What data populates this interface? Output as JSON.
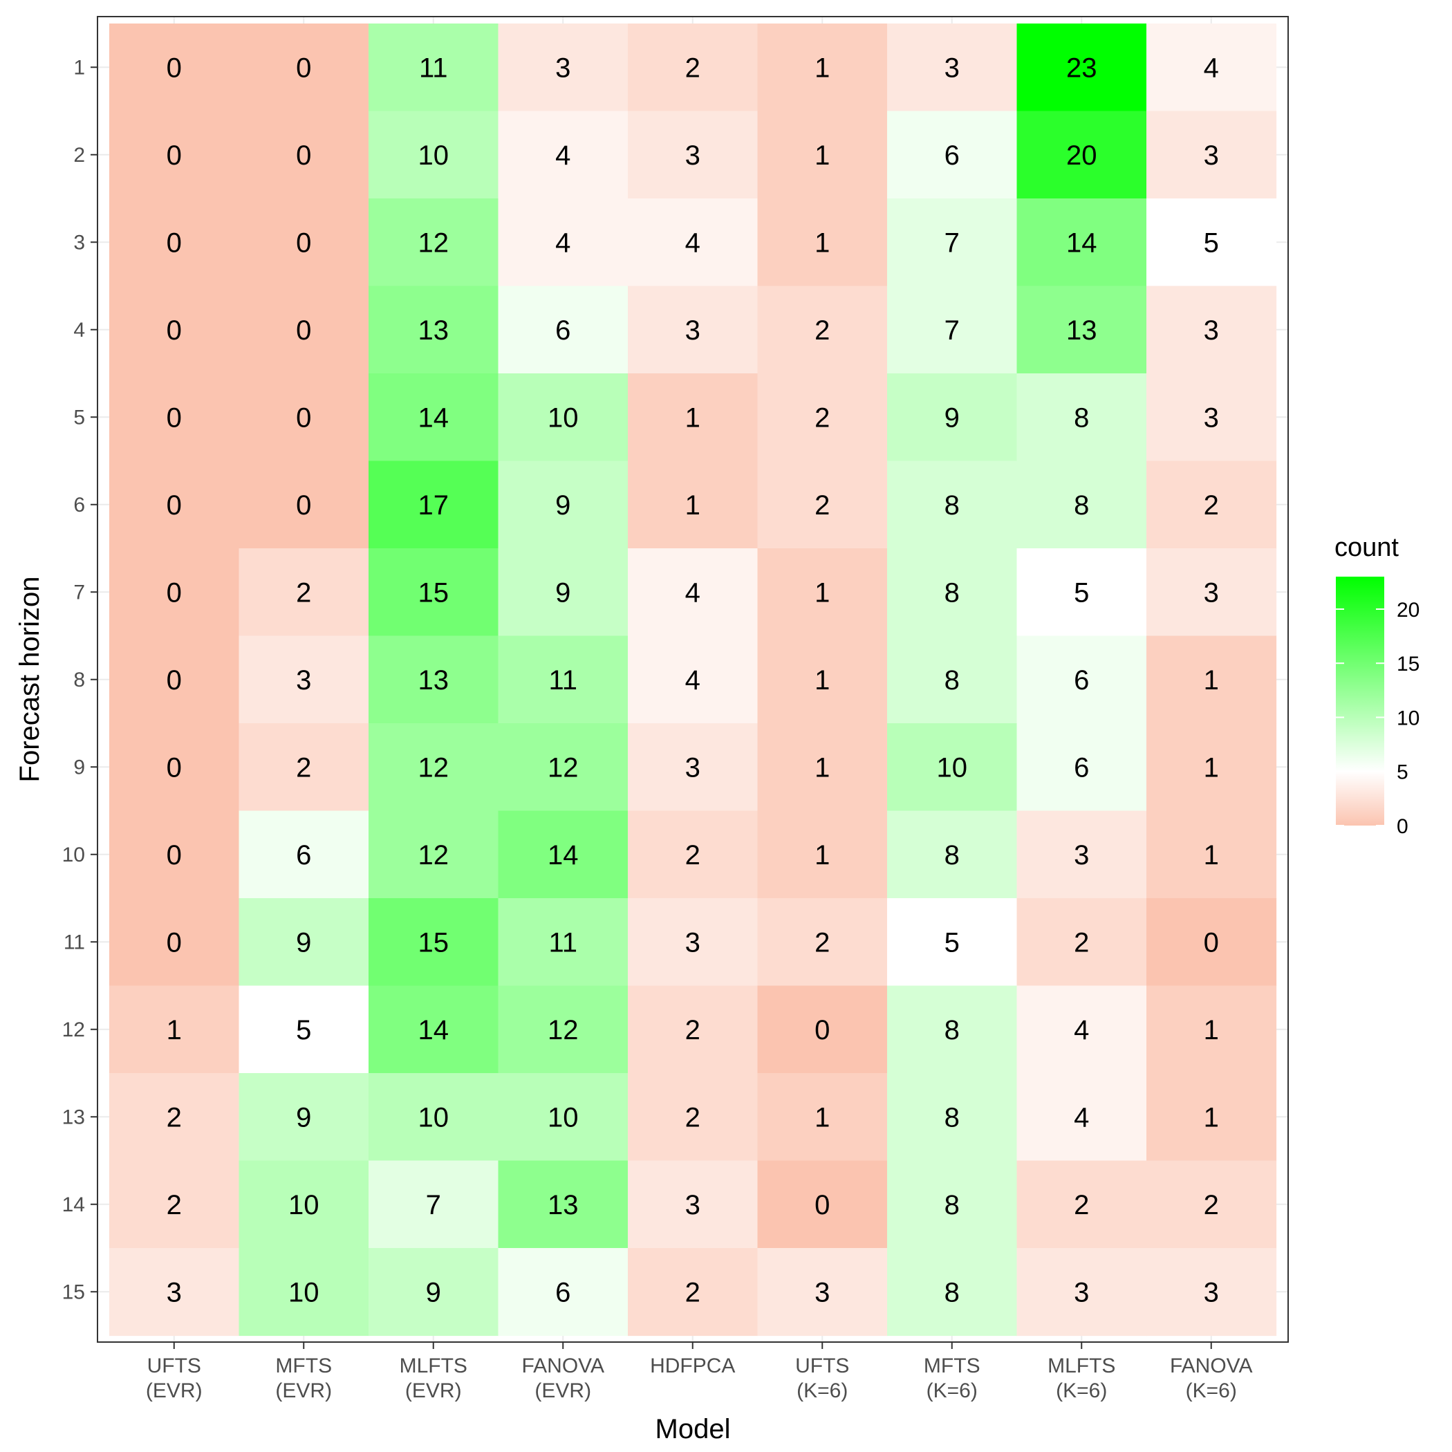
{
  "chart_data": {
    "type": "heatmap",
    "xlabel": "Model",
    "ylabel": "Forecast horizon",
    "x_categories": [
      [
        "UFTS",
        "(EVR)"
      ],
      [
        "MFTS",
        "(EVR)"
      ],
      [
        "MLFTS",
        "(EVR)"
      ],
      [
        "FANOVA",
        "(EVR)"
      ],
      [
        "HDFPCA"
      ],
      [
        "UFTS",
        "(K=6)"
      ],
      [
        "MFTS",
        "(K=6)"
      ],
      [
        "MLFTS",
        "(K=6)"
      ],
      [
        "FANOVA",
        "(K=6)"
      ]
    ],
    "y_categories": [
      "1",
      "2",
      "3",
      "4",
      "5",
      "6",
      "7",
      "8",
      "9",
      "10",
      "11",
      "12",
      "13",
      "14",
      "15"
    ],
    "values": [
      [
        0,
        0,
        11,
        3,
        2,
        1,
        3,
        23,
        4
      ],
      [
        0,
        0,
        10,
        4,
        3,
        1,
        6,
        20,
        3
      ],
      [
        0,
        0,
        12,
        4,
        4,
        1,
        7,
        14,
        5
      ],
      [
        0,
        0,
        13,
        6,
        3,
        2,
        7,
        13,
        3
      ],
      [
        0,
        0,
        14,
        10,
        1,
        2,
        9,
        8,
        3
      ],
      [
        0,
        0,
        17,
        9,
        1,
        2,
        8,
        8,
        2
      ],
      [
        0,
        2,
        15,
        9,
        4,
        1,
        8,
        5,
        3
      ],
      [
        0,
        3,
        13,
        11,
        4,
        1,
        8,
        6,
        1
      ],
      [
        0,
        2,
        12,
        12,
        3,
        1,
        10,
        6,
        1
      ],
      [
        0,
        6,
        12,
        14,
        2,
        1,
        8,
        3,
        1
      ],
      [
        0,
        9,
        15,
        11,
        3,
        2,
        5,
        2,
        0
      ],
      [
        1,
        5,
        14,
        12,
        2,
        0,
        8,
        4,
        1
      ],
      [
        2,
        9,
        10,
        10,
        2,
        1,
        8,
        4,
        1
      ],
      [
        2,
        10,
        7,
        13,
        3,
        0,
        8,
        2,
        2
      ],
      [
        3,
        10,
        9,
        6,
        2,
        3,
        8,
        3,
        3
      ]
    ],
    "legend": {
      "title": "count",
      "ticks": [
        0,
        5,
        10,
        15,
        20
      ],
      "range": [
        0,
        23
      ],
      "midpoint": 5,
      "low_color": "#fbc4b0",
      "mid_color": "#ffffff",
      "high_color": "#00ff00",
      "placement": "right"
    },
    "grid": true,
    "border_color": "#333333",
    "grid_color": "#ebebeb"
  }
}
